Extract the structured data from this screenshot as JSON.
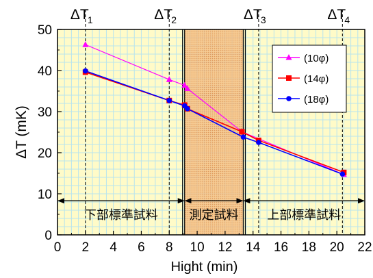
{
  "chart_data": {
    "type": "line",
    "xlabel": "Hight (min)",
    "ylabel": "ΔT (mK)",
    "xlim": [
      0,
      22
    ],
    "ylim": [
      0,
      50
    ],
    "x_ticks": [
      0,
      2,
      4,
      6,
      8,
      10,
      12,
      14,
      16,
      18,
      20,
      22
    ],
    "y_ticks": [
      0,
      10,
      20,
      30,
      40,
      50
    ],
    "grid": true,
    "legend_position": "top-right",
    "top_markers": [
      {
        "label": "ΔT",
        "sub": "1",
        "x": 2.0
      },
      {
        "label": "ΔT",
        "sub": "2",
        "x": 8.0
      },
      {
        "label": "ΔT",
        "sub": "3",
        "x": 14.4
      },
      {
        "label": "ΔT",
        "sub": "4",
        "x": 20.4
      }
    ],
    "measurement_region": {
      "x_start": 9.1,
      "x_end": 13.3
    },
    "region_labels": [
      {
        "text": "下部標準試料",
        "x_start": 0,
        "x_end": 9.1
      },
      {
        "text": "測定試料",
        "x_start": 9.1,
        "x_end": 13.3
      },
      {
        "text": "上部標準試料",
        "x_start": 13.3,
        "x_end": 22
      }
    ],
    "region_arrow_y": 8.3,
    "series": [
      {
        "name": "(10φ)",
        "color": "#ff00ff",
        "marker": "triangle",
        "x": [
          2.0,
          8.0,
          9.1,
          9.3,
          13.2,
          20.5
        ],
        "y": [
          46.3,
          37.8,
          36.4,
          35.6,
          25.1,
          14.7
        ]
      },
      {
        "name": "(14φ)",
        "color": "#ff0000",
        "marker": "square",
        "x": [
          2.0,
          8.0,
          9.1,
          9.3,
          13.2,
          14.4,
          20.5
        ],
        "y": [
          39.6,
          32.7,
          31.6,
          30.7,
          25.1,
          23.0,
          15.2
        ]
      },
      {
        "name": "(18φ)",
        "color": "#0000ff",
        "marker": "circle",
        "x": [
          2.0,
          8.0,
          9.1,
          9.3,
          13.3,
          14.4,
          20.4
        ],
        "y": [
          39.9,
          32.7,
          31.4,
          30.7,
          23.8,
          22.5,
          14.8
        ]
      }
    ]
  }
}
